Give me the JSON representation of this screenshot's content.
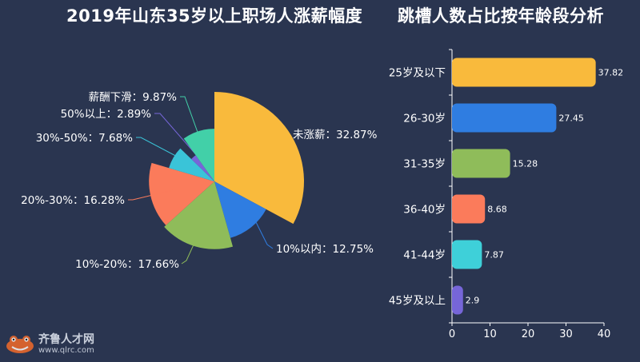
{
  "chart_data": [
    {
      "type": "pie",
      "variant": "rose",
      "title": "2019年山东35岁以上职场人涨薪幅度",
      "slices": [
        {
          "label": "未涨薪",
          "value": 32.87,
          "display": "未涨薪：32.87%",
          "color": "#f9ba3c"
        },
        {
          "label": "10%以内",
          "value": 12.75,
          "display": "10%以内：12.75%",
          "color": "#2f7de1"
        },
        {
          "label": "10%-20%",
          "value": 17.66,
          "display": "10%-20%：17.66%",
          "color": "#8fbc5a"
        },
        {
          "label": "20%-30%",
          "value": 16.28,
          "display": "20%-30%：16.28%",
          "color": "#fb7b5b"
        },
        {
          "label": "30%-50%",
          "value": 7.68,
          "display": "30%-50%：7.68%",
          "color": "#3ac4d8"
        },
        {
          "label": "50%以上",
          "value": 2.89,
          "display": "50%以上：2.89%",
          "color": "#7666d8"
        },
        {
          "label": "薪酬下滑",
          "value": 9.87,
          "display": "薪酬下滑：9.87%",
          "color": "#42d0a8"
        }
      ]
    },
    {
      "type": "bar",
      "orientation": "horizontal",
      "title": "跳槽人数占比按年龄段分析",
      "categories": [
        "25岁及以下",
        "26-30岁",
        "31-35岁",
        "36-40岁",
        "41-44岁",
        "45岁及以上"
      ],
      "values": [
        37.82,
        27.45,
        15.28,
        8.68,
        7.87,
        2.9
      ],
      "value_labels": [
        "37.82",
        "27.45",
        "15.28",
        "8.68",
        "7.87",
        "2.9"
      ],
      "colors": [
        "#f9ba3c",
        "#2f7de1",
        "#8fbc5a",
        "#fb7b5b",
        "#3ed0d9",
        "#7666d8"
      ],
      "xlim": [
        0,
        40
      ],
      "xticks": [
        "0",
        "10",
        "20",
        "30",
        "40"
      ]
    }
  ],
  "logo": {
    "name": "齐鲁人才网",
    "url": "www.qlrc.com"
  }
}
